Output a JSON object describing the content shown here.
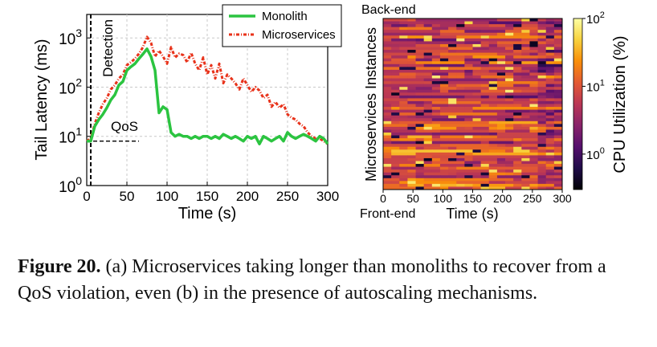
{
  "chart_data": [
    {
      "type": "line",
      "ylabel": "Tail Latency (ms)",
      "xlabel": "Time (s)",
      "yscale": "log",
      "xlim": [
        0,
        300
      ],
      "ylim": [
        1,
        3000
      ],
      "xticks": [
        "0",
        "50",
        "100",
        "150",
        "200",
        "250",
        "300"
      ],
      "yticks": [
        {
          "base": "10",
          "exp": "0"
        },
        {
          "base": "10",
          "exp": "1"
        },
        {
          "base": "10",
          "exp": "2"
        },
        {
          "base": "10",
          "exp": "3"
        }
      ],
      "grid": true,
      "legend_position": "top-right",
      "annotations": {
        "detection": "Detection",
        "qos": "QoS",
        "qos_value": 8,
        "detection_x": 5
      },
      "series": [
        {
          "name": "Monolith",
          "color": "#2bc440",
          "x": [
            0,
            5,
            10,
            15,
            20,
            25,
            30,
            35,
            40,
            45,
            50,
            55,
            60,
            65,
            70,
            75,
            80,
            85,
            90,
            95,
            100,
            105,
            110,
            115,
            120,
            125,
            130,
            135,
            140,
            145,
            150,
            155,
            160,
            165,
            170,
            175,
            180,
            185,
            190,
            195,
            200,
            205,
            210,
            215,
            220,
            225,
            230,
            235,
            240,
            245,
            250,
            255,
            260,
            265,
            270,
            275,
            280,
            285,
            290,
            295,
            300
          ],
          "y": [
            8,
            8,
            16,
            22,
            28,
            38,
            55,
            70,
            110,
            130,
            220,
            260,
            300,
            380,
            470,
            600,
            420,
            220,
            30,
            40,
            35,
            12,
            10,
            11,
            10,
            10,
            9,
            10,
            9,
            10,
            10,
            9,
            10,
            9,
            11,
            10,
            9,
            10,
            9,
            8,
            10,
            9,
            10,
            7,
            10,
            9,
            8,
            9,
            10,
            8,
            12,
            10,
            9,
            10,
            11,
            10,
            9,
            8,
            10,
            9,
            7
          ]
        },
        {
          "name": "Microservices",
          "color": "#e8321a",
          "x": [
            0,
            5,
            10,
            15,
            20,
            25,
            30,
            35,
            40,
            45,
            50,
            55,
            60,
            65,
            70,
            75,
            80,
            85,
            90,
            95,
            100,
            105,
            110,
            115,
            120,
            125,
            130,
            135,
            140,
            145,
            150,
            155,
            160,
            165,
            170,
            175,
            180,
            185,
            190,
            195,
            200,
            205,
            210,
            215,
            220,
            225,
            230,
            235,
            240,
            245,
            250,
            255,
            260,
            265,
            270,
            275,
            280,
            285,
            290,
            295,
            300
          ],
          "y": [
            8,
            9,
            18,
            30,
            45,
            60,
            90,
            110,
            150,
            180,
            280,
            320,
            380,
            480,
            650,
            1050,
            800,
            420,
            550,
            420,
            300,
            650,
            400,
            480,
            450,
            320,
            500,
            300,
            220,
            400,
            180,
            280,
            150,
            300,
            120,
            180,
            150,
            120,
            90,
            150,
            110,
            80,
            100,
            85,
            60,
            70,
            40,
            50,
            38,
            45,
            28,
            24,
            22,
            18,
            16,
            12,
            10,
            9,
            9,
            8,
            7
          ]
        }
      ]
    },
    {
      "type": "heatmap",
      "xlabel": "Time (s)",
      "ylabel": "Microservices Instances",
      "xlim": [
        0,
        300
      ],
      "xticks": [
        "0",
        "50",
        "100",
        "150",
        "200",
        "250",
        "300"
      ],
      "top_label": "Back-end",
      "bottom_label": "Front-end",
      "colorbar": {
        "label": "CPU Utilization (%)",
        "scale": "log",
        "range": [
          0.3,
          100
        ],
        "ticks": [
          {
            "base": "10",
            "exp": "2"
          },
          {
            "base": "10",
            "exp": "1"
          },
          {
            "base": "10",
            "exp": "0"
          }
        ],
        "colors": [
          "#000004",
          "#1f0c48",
          "#550f6d",
          "#88226a",
          "#ba3655",
          "#e35933",
          "#f98e09",
          "#f7d13d",
          "#fcffa4"
        ]
      },
      "rows": 60,
      "cols": 22
    }
  ],
  "caption": {
    "label": "Figure 20.",
    "text": " (a) Microservices taking longer than monoliths to recover from a QoS violation, even (b) in the presence of autoscaling mechanisms."
  }
}
